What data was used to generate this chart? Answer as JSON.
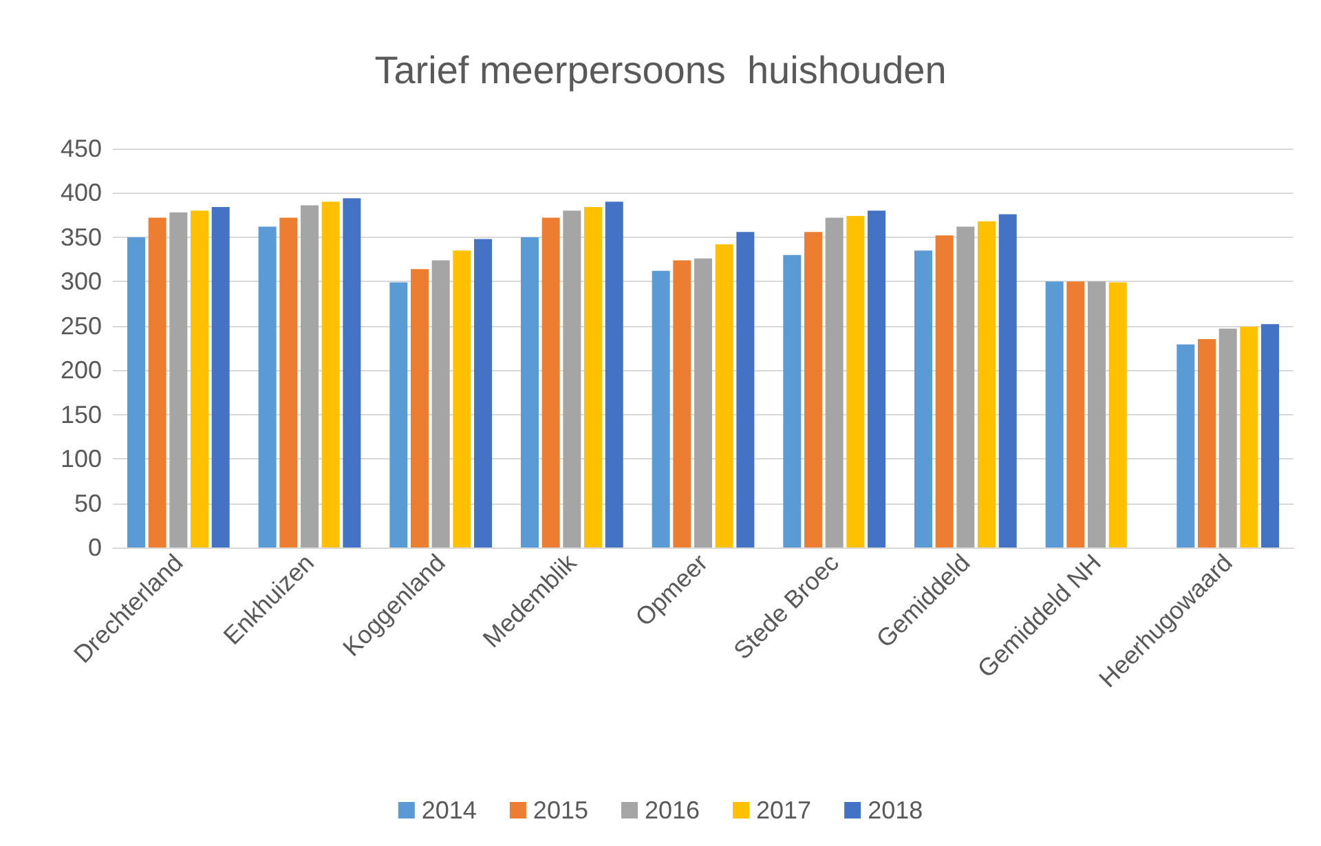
{
  "chart_data": {
    "type": "bar",
    "title": "Tarief meerpersoons  huishouden",
    "categories": [
      "Drechterland",
      "Enkhuizen",
      "Koggenland",
      "Medemblik",
      "Opmeer",
      "Stede Broec",
      "Gemiddeld",
      "Gemiddeld NH",
      "Heerhugowaard"
    ],
    "series": [
      {
        "name": "2014",
        "color": "#5b9bd5",
        "values": [
          350,
          362,
          299,
          350,
          312,
          330,
          335,
          300,
          229
        ]
      },
      {
        "name": "2015",
        "color": "#ed7d31",
        "values": [
          372,
          372,
          314,
          372,
          324,
          356,
          352,
          300,
          235
        ]
      },
      {
        "name": "2016",
        "color": "#a5a5a5",
        "values": [
          378,
          386,
          324,
          380,
          326,
          372,
          362,
          300,
          247
        ]
      },
      {
        "name": "2017",
        "color": "#ffc000",
        "values": [
          380,
          390,
          335,
          384,
          342,
          374,
          368,
          299,
          249
        ]
      },
      {
        "name": "2018",
        "color": "#4472c4",
        "values": [
          384,
          394,
          348,
          390,
          356,
          380,
          376,
          null,
          252
        ]
      }
    ],
    "ylim": [
      0,
      450
    ],
    "yticks": [
      0,
      50,
      100,
      150,
      200,
      250,
      300,
      350,
      400,
      450
    ],
    "grid": "y",
    "legend": "bottom"
  }
}
